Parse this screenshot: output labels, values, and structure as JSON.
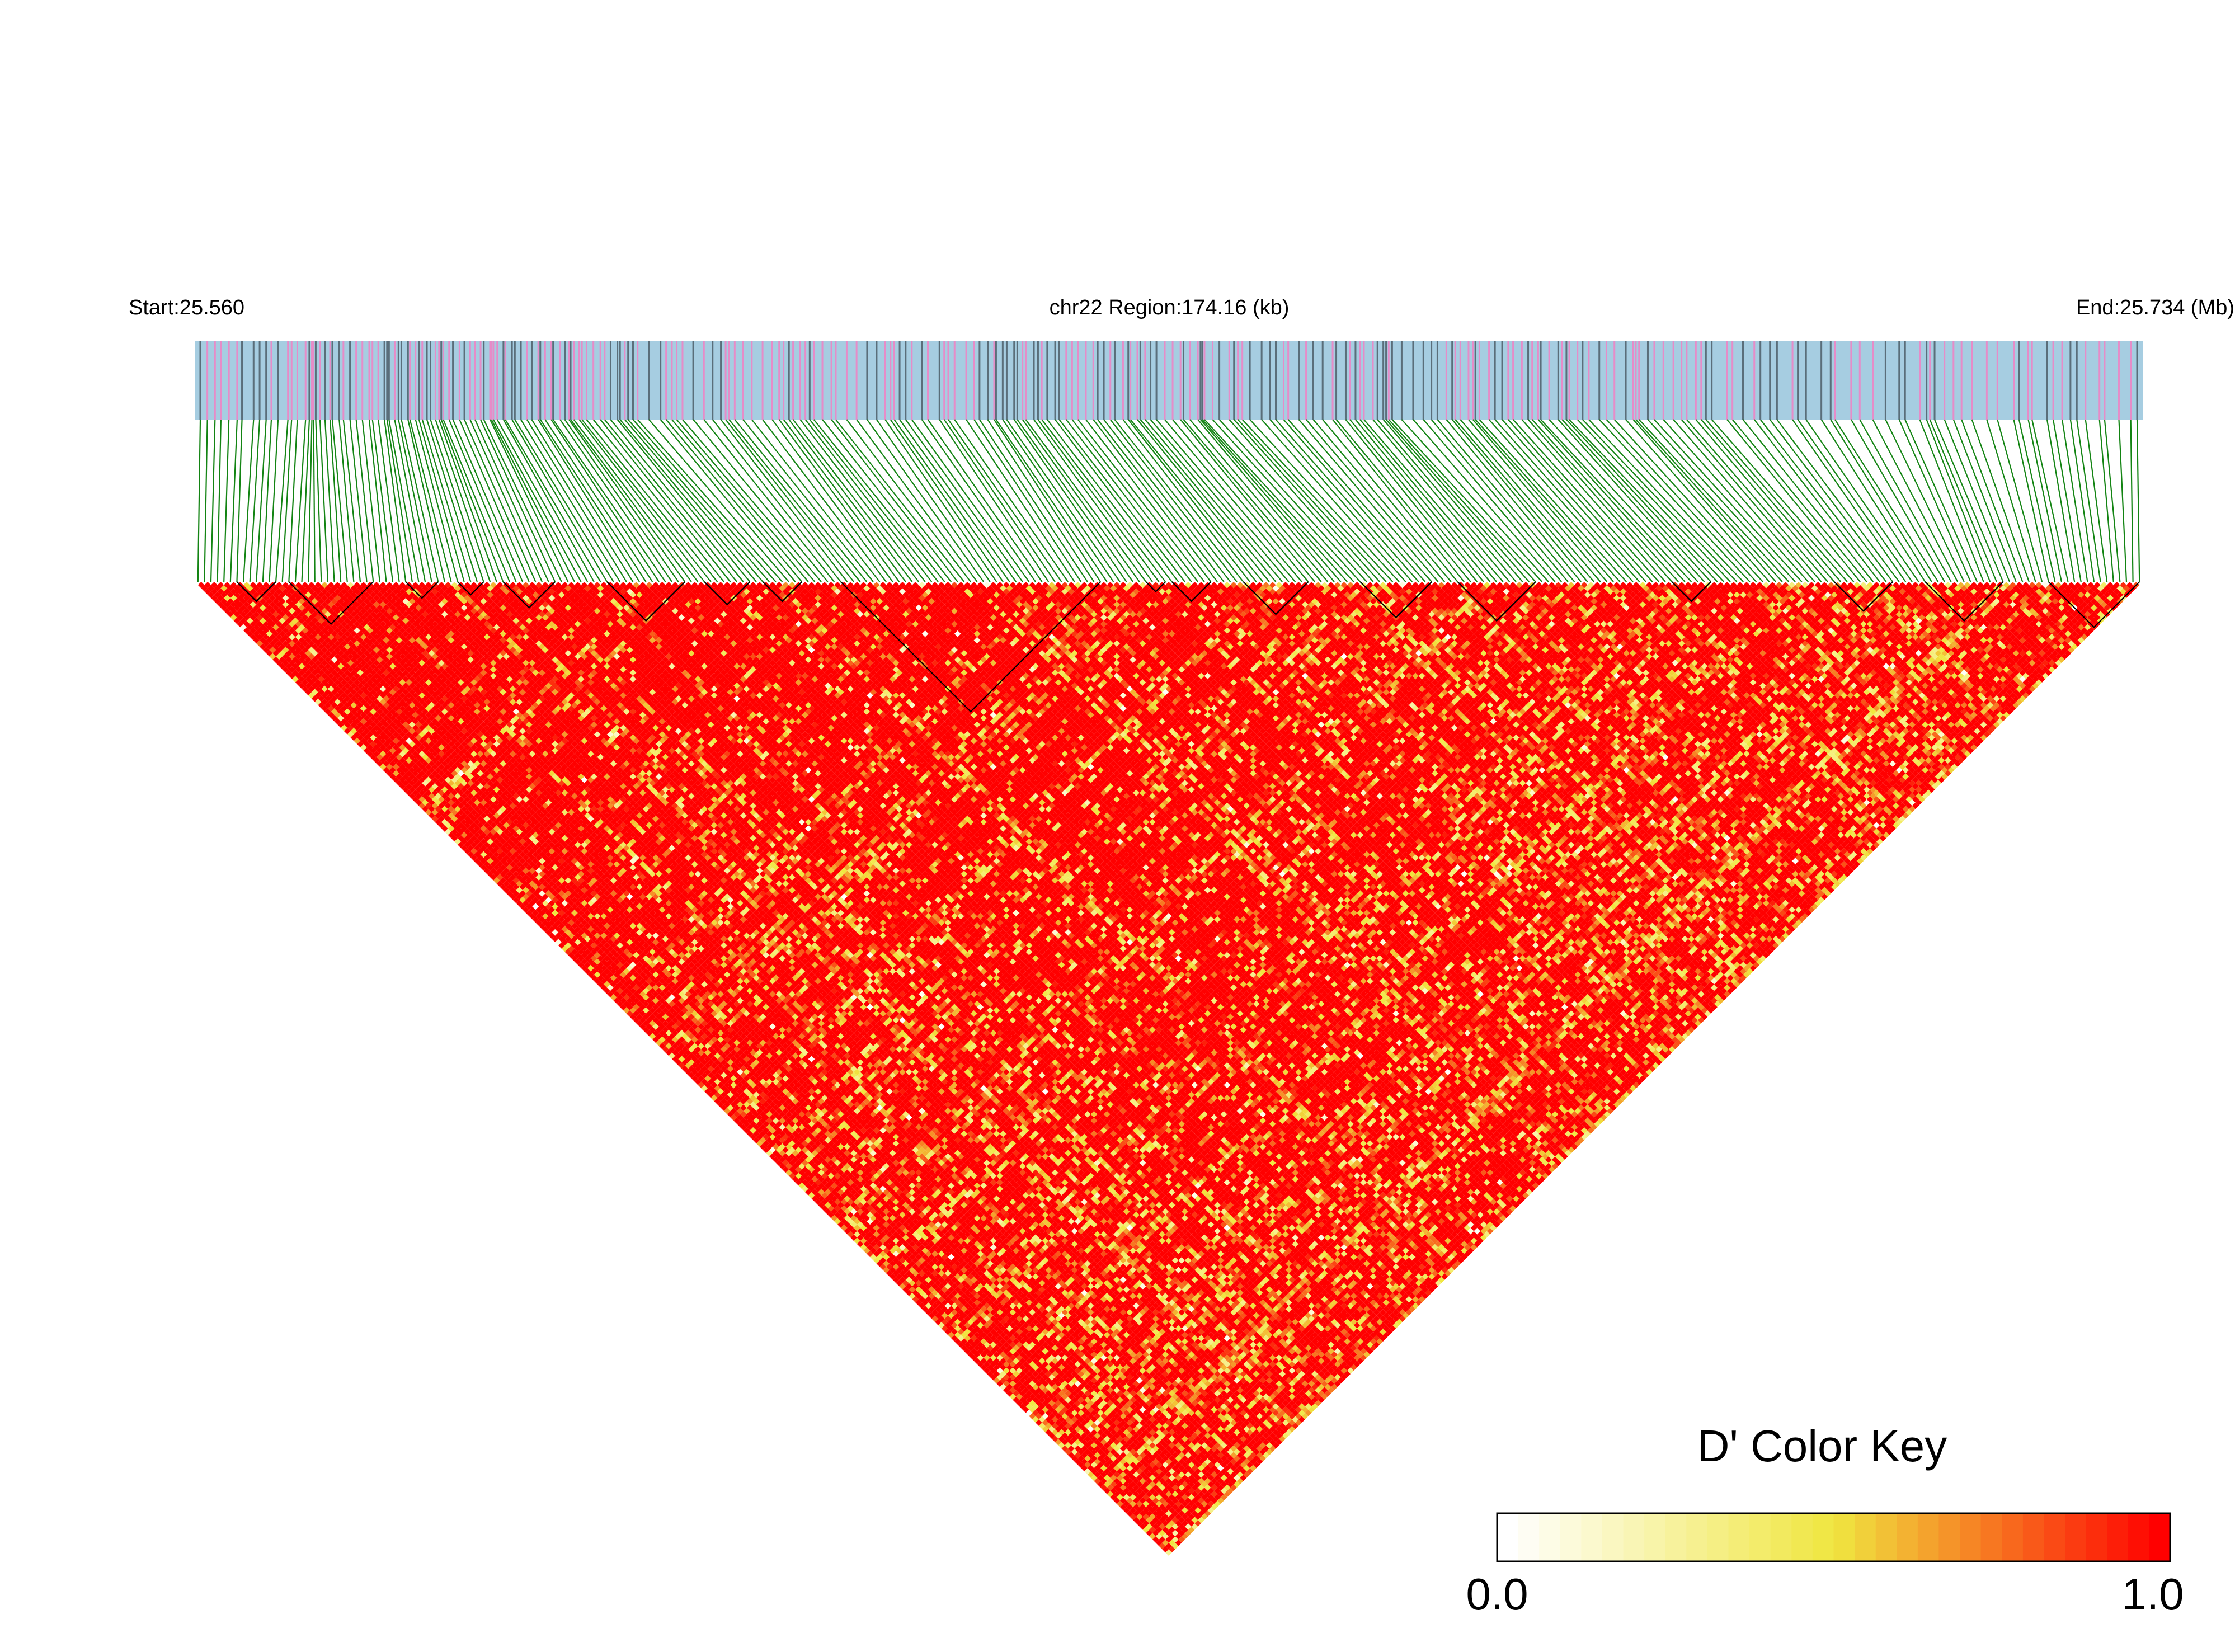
{
  "header": {
    "start_label": "Start:25.560",
    "region_label": "chr22 Region:174.16 (kb)",
    "end_label": "End:25.734 (Mb)"
  },
  "legend": {
    "title": "D' Color Key",
    "min_label": "0.0",
    "max_label": "1.0"
  },
  "colors": {
    "track_background": "#a6cde1",
    "snp_tick_pink": "#e68cc8",
    "snp_tick_dark": "#5a6e7a",
    "connector": "#138413",
    "ld_high": "#ff0000",
    "ld_mid": "#f0e640",
    "ld_low": "#ffffff",
    "block_outline": "#000000"
  },
  "chart_data": {
    "type": "heatmap",
    "chromosome": "chr22",
    "region_start_mb": 25.56,
    "region_end_mb": 25.734,
    "region_length_kb": 174.16,
    "n_snps": 300,
    "metric": "D'",
    "color_scale": {
      "min": 0.0,
      "max": 1.0,
      "low_color": "#ffffff",
      "mid_color": "#f0e640",
      "high_color": "#ff0000"
    },
    "overall_pattern": "predominantly high D' (red), with yellow/white low-LD streaks along the lower and right portions",
    "haplotype_blocks_snp_ranges": [
      [
        7,
        13
      ],
      [
        15,
        28
      ],
      [
        33,
        38
      ],
      [
        41,
        45
      ],
      [
        48,
        56
      ],
      [
        64,
        76
      ],
      [
        79,
        86
      ],
      [
        88,
        94
      ],
      [
        100,
        140
      ],
      [
        147,
        150
      ],
      [
        151,
        157
      ],
      [
        162,
        172
      ],
      [
        180,
        191
      ],
      [
        195,
        207
      ],
      [
        228,
        234
      ],
      [
        253,
        262
      ],
      [
        267,
        279
      ],
      [
        286,
        300
      ]
    ]
  }
}
